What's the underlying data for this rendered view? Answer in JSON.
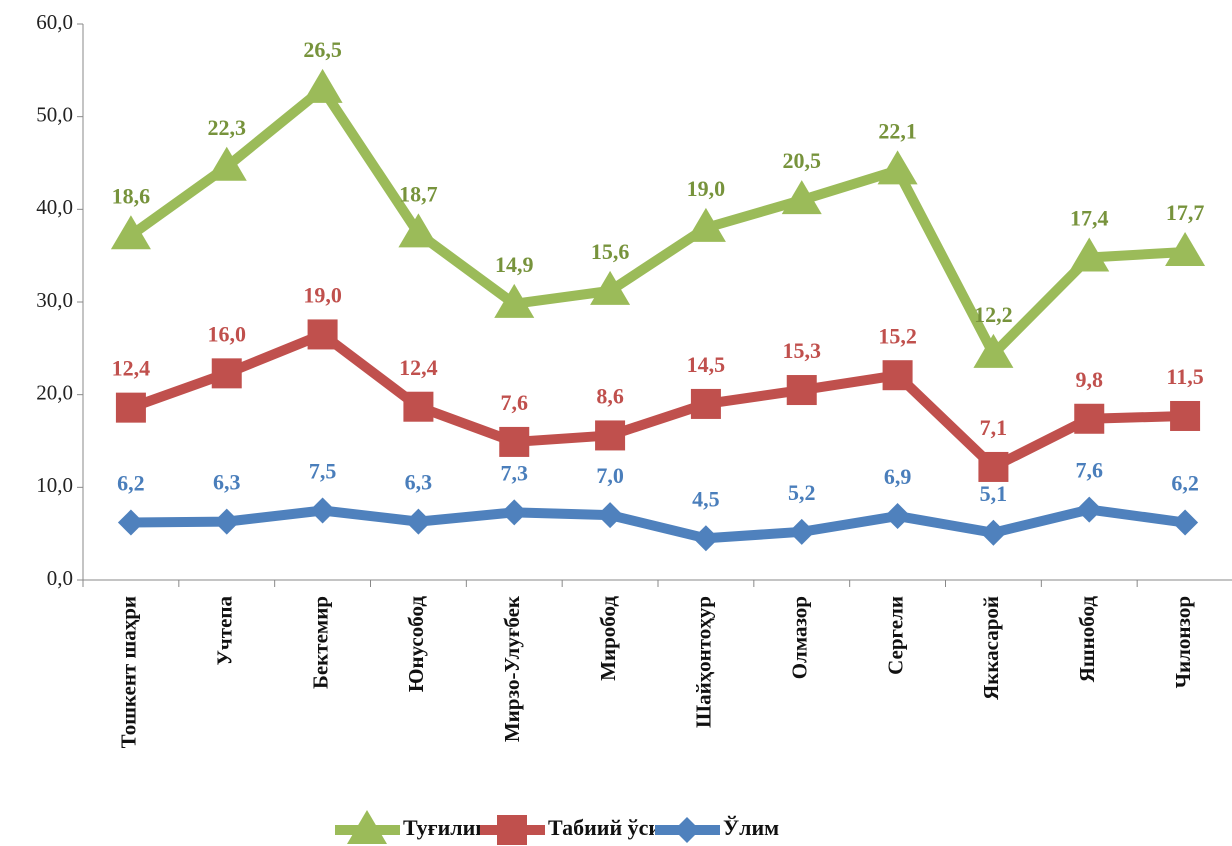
{
  "chart_data": {
    "type": "line",
    "stacked": true,
    "categories": [
      "Тошкент шаҳри",
      "Учтепа",
      "Бектемир",
      "Юнусобод",
      "Мирзо-Улуғбек",
      "Миробод",
      "Шайҳонтоҳур",
      "Олмазор",
      "Сергели",
      "Яккасарой",
      "Яшнобод",
      "Чилонзор"
    ],
    "series": [
      {
        "name": "Ўлим",
        "color": "#4f81bd",
        "label_color": "#4a7ebb",
        "marker": "diamond",
        "values": [
          6.2,
          6.3,
          7.5,
          6.3,
          7.3,
          7.0,
          4.5,
          5.2,
          6.9,
          5.1,
          7.6,
          6.2
        ],
        "value_labels": [
          "6,2",
          "6,3",
          "7,5",
          "6,3",
          "7,3",
          "7,0",
          "4,5",
          "5,2",
          "6,9",
          "5,1",
          "7,6",
          "6,2"
        ]
      },
      {
        "name": "Табиий ўсиш",
        "color": "#c0504d",
        "label_color": "#c0504d",
        "marker": "square",
        "values": [
          12.4,
          16.0,
          19.0,
          12.4,
          7.6,
          8.6,
          14.5,
          15.3,
          15.2,
          7.1,
          9.8,
          11.5
        ],
        "value_labels": [
          "12,4",
          "16,0",
          "19,0",
          "12,4",
          "7,6",
          "8,6",
          "14,5",
          "15,3",
          "15,2",
          "7,1",
          "9,8",
          "11,5"
        ]
      },
      {
        "name": "Туғилиш",
        "color": "#9bbb59",
        "label_color": "#77933c",
        "marker": "triangle",
        "values": [
          18.6,
          22.3,
          26.5,
          18.7,
          14.9,
          15.6,
          19.0,
          20.5,
          22.1,
          12.2,
          17.4,
          17.7
        ],
        "value_labels": [
          "18,6",
          "22,3",
          "26,5",
          "18,7",
          "14,9",
          "15,6",
          "19,0",
          "20,5",
          "22,1",
          "12,2",
          "17,4",
          "17,7"
        ]
      }
    ],
    "legend_order": [
      2,
      1,
      0
    ],
    "ylim": [
      0,
      60
    ],
    "yticks": [
      {
        "value": 0,
        "label": "0,0"
      },
      {
        "value": 10,
        "label": "10,0"
      },
      {
        "value": 20,
        "label": "20,0"
      },
      {
        "value": 30,
        "label": "30,0"
      },
      {
        "value": 40,
        "label": "40,0"
      },
      {
        "value": 50,
        "label": "50,0"
      },
      {
        "value": 60,
        "label": "60,0"
      }
    ],
    "legend": "bottom"
  }
}
